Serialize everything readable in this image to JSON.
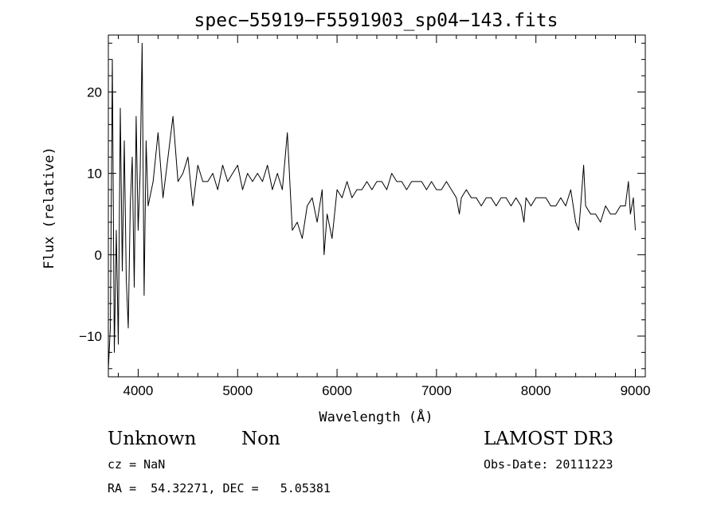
{
  "chart_data": {
    "type": "line",
    "title": "spec−55919−F5591903_sp04−143.fits",
    "xlabel": "Wavelength (Å)",
    "ylabel": "Flux (relative)",
    "xlim": [
      3700,
      9100
    ],
    "ylim": [
      -15,
      27
    ],
    "x_ticks": [
      4000,
      5000,
      6000,
      7000,
      8000,
      9000
    ],
    "x_tick_labels": [
      "4000",
      "5000",
      "6000",
      "7000",
      "8000",
      "9000"
    ],
    "y_ticks": [
      -10,
      0,
      10,
      20
    ],
    "y_tick_labels": [
      "−10",
      "0",
      "10",
      "20"
    ],
    "grid": false,
    "series": [
      {
        "x": [
          3700,
          3720,
          3740,
          3760,
          3780,
          3800,
          3820,
          3840,
          3860,
          3880,
          3900,
          3920,
          3940,
          3960,
          3980,
          4000,
          4020,
          4040,
          4060,
          4080,
          4100,
          4150,
          4200,
          4250,
          4300,
          4350,
          4400,
          4450,
          4500,
          4550,
          4600,
          4650,
          4700,
          4750,
          4800,
          4850,
          4900,
          4950,
          5000,
          5050,
          5100,
          5150,
          5200,
          5250,
          5300,
          5350,
          5400,
          5450,
          5500,
          5550,
          5600,
          5650,
          5700,
          5750,
          5800,
          5850,
          5870,
          5900,
          5950,
          6000,
          6050,
          6100,
          6150,
          6200,
          6250,
          6300,
          6350,
          6400,
          6450,
          6500,
          6550,
          6600,
          6650,
          6700,
          6750,
          6800,
          6850,
          6900,
          6950,
          7000,
          7050,
          7100,
          7150,
          7200,
          7230,
          7250,
          7300,
          7350,
          7400,
          7450,
          7500,
          7550,
          7600,
          7650,
          7700,
          7750,
          7800,
          7850,
          7880,
          7900,
          7950,
          8000,
          8050,
          8100,
          8150,
          8200,
          8250,
          8300,
          8350,
          8400,
          8430,
          8450,
          8480,
          8500,
          8550,
          8600,
          8650,
          8700,
          8750,
          8800,
          8850,
          8900,
          8930,
          8950,
          8980,
          9000
        ],
        "y": [
          -14,
          -9,
          24,
          -12,
          3,
          -11,
          18,
          -2,
          14,
          -3,
          -9,
          6,
          12,
          -4,
          17,
          3,
          10,
          26,
          -5,
          14,
          6,
          9,
          15,
          7,
          12,
          17,
          9,
          10,
          12,
          6,
          11,
          9,
          9,
          10,
          8,
          11,
          9,
          10,
          11,
          8,
          10,
          9,
          10,
          9,
          11,
          8,
          10,
          8,
          15,
          3,
          4,
          2,
          6,
          7,
          4,
          8,
          0,
          5,
          2,
          8,
          7,
          9,
          7,
          8,
          8,
          9,
          8,
          9,
          9,
          8,
          10,
          9,
          9,
          8,
          9,
          9,
          9,
          8,
          9,
          8,
          8,
          9,
          8,
          7,
          5,
          7,
          8,
          7,
          7,
          6,
          7,
          7,
          6,
          7,
          7,
          6,
          7,
          6,
          4,
          7,
          6,
          7,
          7,
          7,
          6,
          6,
          7,
          6,
          8,
          4,
          3,
          6,
          11,
          6,
          5,
          5,
          4,
          6,
          5,
          5,
          6,
          6,
          9,
          5,
          7,
          3
        ]
      }
    ]
  },
  "info": {
    "object_class": "Unknown",
    "object_subclass": "Non",
    "redshift": "cz = NaN",
    "coordinates": "RA =  54.32271, DEC =   5.05381",
    "survey": "LAMOST DR3",
    "obs_date": "Obs-Date: 20111223"
  }
}
